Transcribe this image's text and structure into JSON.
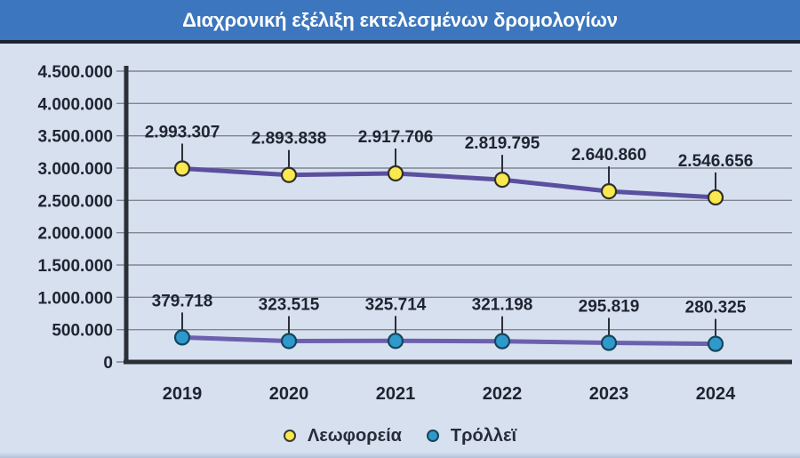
{
  "header": {
    "title": "Διαχρονική εξέλιξη εκτελεσμένων δρομολογίων",
    "bg_color": "#3b76be",
    "text_color": "#ffffff"
  },
  "colors": {
    "page_bg": "#d7e0ef",
    "grid": "#81868f",
    "axis": "#2b2f36",
    "bus_line": "#5b4fa0",
    "trolley_line": "#6c60ae",
    "bus_marker_fill": "#f9e84e",
    "bus_marker_outline": "#32302a",
    "trolley_marker_fill": "#2f99cb",
    "trolley_marker_outline": "#14465e",
    "label_text": "#1f2530"
  },
  "chart_data": {
    "type": "line",
    "title": "Διαχρονική εξέλιξη εκτελεσμένων δρομολογίων",
    "x": [
      "2019",
      "2020",
      "2021",
      "2022",
      "2023",
      "2024"
    ],
    "series": [
      {
        "name": "Λεωφορεία",
        "values": [
          2993307,
          2893838,
          2917706,
          2819795,
          2640860,
          2546656
        ],
        "labels": [
          "2.993.307",
          "2.893.838",
          "2.917.706",
          "2.819.795",
          "2.640.860",
          "2.546.656"
        ]
      },
      {
        "name": "Τρόλλεϊ",
        "values": [
          379718,
          323515,
          325714,
          321198,
          295819,
          280325
        ],
        "labels": [
          "379.718",
          "323.515",
          "325.714",
          "321.198",
          "295.819",
          "280.325"
        ]
      }
    ],
    "ylim": [
      0,
      4500000
    ],
    "ytick_step": 500000,
    "ytick_labels": [
      "0",
      "500.000",
      "1.000.000",
      "1.500.000",
      "2.000.000",
      "2.500.000",
      "3.000.000",
      "3.500.000",
      "4.000.000",
      "4.500.000"
    ],
    "xlabel": "",
    "ylabel": "",
    "grid": "horizontal",
    "legend_position": "bottom"
  },
  "legend": {
    "items": [
      {
        "label": "Λεωφορεία",
        "color": "#f9e84e",
        "outline": "#3a3a30"
      },
      {
        "label": "Τρόλλεϊ",
        "color": "#2f99cb",
        "outline": "#14465e"
      }
    ]
  }
}
